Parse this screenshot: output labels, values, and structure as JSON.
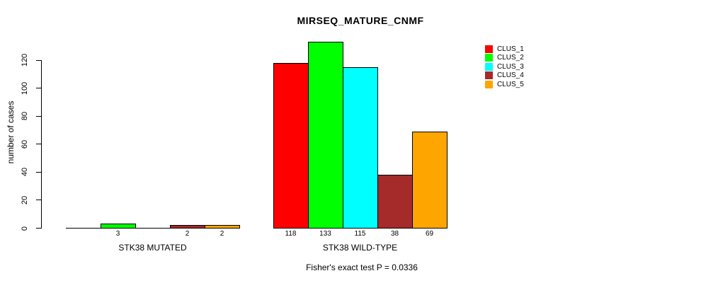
{
  "chart_data": {
    "type": "bar",
    "title": "MIRSEQ_MATURE_CNMF",
    "ylabel": "number of cases",
    "ylim": [
      0,
      133
    ],
    "yticks": [
      0,
      20,
      40,
      60,
      80,
      100,
      120
    ],
    "grid": false,
    "legend_position": "top-right",
    "categories": [
      "STK38 MUTATED",
      "STK38 WILD-TYPE"
    ],
    "series": [
      {
        "name": "CLUS_1",
        "color": "#FF0000",
        "values": [
          0,
          118
        ]
      },
      {
        "name": "CLUS_2",
        "color": "#00FF00",
        "values": [
          3,
          133
        ]
      },
      {
        "name": "CLUS_3",
        "color": "#00FFFF",
        "values": [
          0,
          115
        ]
      },
      {
        "name": "CLUS_4",
        "color": "#A52A2A",
        "values": [
          2,
          38
        ]
      },
      {
        "name": "CLUS_5",
        "color": "#FFA500",
        "values": [
          2,
          69
        ]
      }
    ],
    "value_labels": [
      [
        "",
        "3",
        "",
        "2",
        "2"
      ],
      [
        "118",
        "133",
        "115",
        "38",
        "69"
      ]
    ],
    "footnote": "Fisher's exact test P = 0.0336",
    "axis_color": "#000000",
    "background_color": "#FFFFFF"
  }
}
